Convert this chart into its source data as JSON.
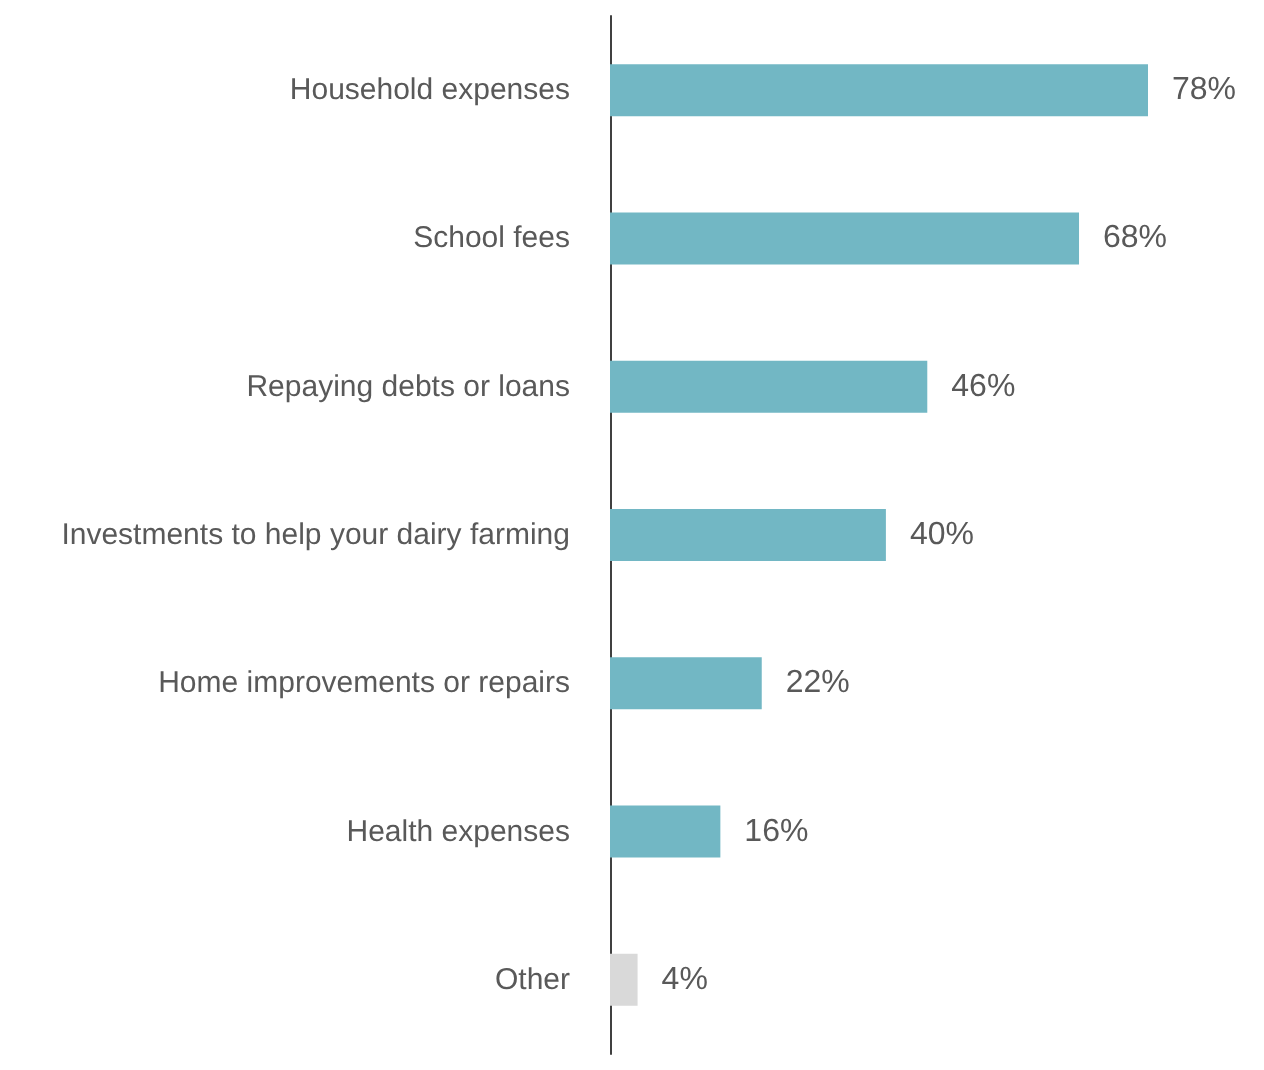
{
  "chart_data": {
    "type": "bar",
    "orientation": "horizontal",
    "categories": [
      "Household expenses",
      "School fees",
      "Repaying debts or loans",
      "Investments to help your dairy farming",
      "Home improvements or repairs",
      "Health expenses",
      "Other"
    ],
    "values": [
      78,
      68,
      46,
      40,
      22,
      16,
      4
    ],
    "colors": [
      "#72b7c4",
      "#72b7c4",
      "#72b7c4",
      "#72b7c4",
      "#72b7c4",
      "#72b7c4",
      "#d9d9d9"
    ],
    "value_labels": [
      "78%",
      "68%",
      "46%",
      "40%",
      "22%",
      "16%",
      "4%"
    ]
  }
}
